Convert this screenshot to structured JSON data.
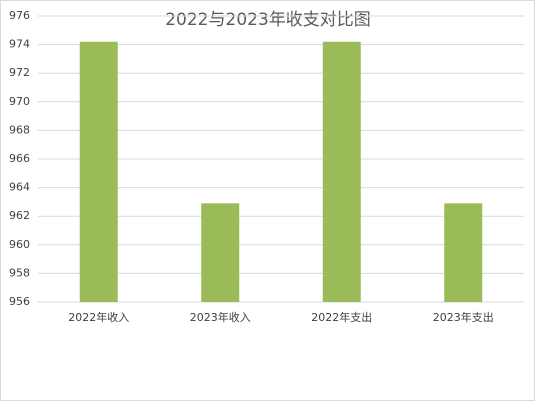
{
  "chart_data": {
    "type": "bar",
    "title": "2022与2023年收支对比图",
    "categories": [
      "2022年收入",
      "2023年收入",
      "2022年支出",
      "2023年支出"
    ],
    "values": [
      974.2,
      962.9,
      974.2,
      962.9
    ],
    "color": "#9bbb59",
    "ylim": [
      956,
      976
    ],
    "yticks": [
      956,
      958,
      960,
      962,
      964,
      966,
      968,
      970,
      972,
      974,
      976
    ],
    "grid": true
  }
}
